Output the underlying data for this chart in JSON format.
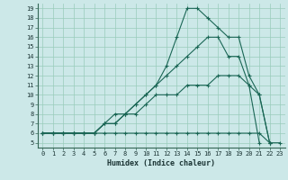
{
  "xlabel": "Humidex (Indice chaleur)",
  "bg_color": "#cce8e8",
  "grid_color": "#99ccbb",
  "line_color": "#1a6655",
  "xlim": [
    0,
    23
  ],
  "ylim": [
    5,
    19
  ],
  "series": [
    {
      "x": [
        0,
        1,
        2,
        3,
        4,
        5,
        6,
        7,
        8,
        9,
        10,
        11,
        12,
        13,
        14,
        15,
        16,
        17,
        18,
        19,
        20,
        21,
        22,
        23
      ],
      "y": [
        6,
        6,
        6,
        6,
        6,
        6,
        6,
        6,
        6,
        6,
        6,
        6,
        6,
        6,
        6,
        6,
        6,
        6,
        6,
        6,
        6,
        6,
        5,
        5
      ]
    },
    {
      "x": [
        0,
        1,
        2,
        3,
        4,
        5,
        6,
        7,
        8,
        9,
        10,
        11,
        12,
        13,
        14,
        15,
        16,
        17,
        18,
        19,
        20,
        21,
        22
      ],
      "y": [
        6,
        6,
        6,
        6,
        6,
        6,
        7,
        7,
        8,
        8,
        9,
        10,
        10,
        10,
        11,
        11,
        11,
        12,
        12,
        12,
        11,
        10,
        5
      ]
    },
    {
      "x": [
        0,
        1,
        2,
        3,
        4,
        5,
        6,
        7,
        8,
        9,
        10,
        11,
        12,
        13,
        14,
        15,
        16,
        17,
        18,
        19,
        20,
        21
      ],
      "y": [
        6,
        6,
        6,
        6,
        6,
        6,
        7,
        8,
        8,
        9,
        10,
        11,
        12,
        13,
        14,
        15,
        16,
        16,
        14,
        14,
        11,
        5
      ]
    },
    {
      "x": [
        0,
        1,
        2,
        3,
        4,
        5,
        6,
        7,
        8,
        9,
        10,
        11,
        12,
        13,
        14,
        15,
        16,
        17,
        18,
        19,
        20,
        21,
        22
      ],
      "y": [
        6,
        6,
        6,
        6,
        6,
        6,
        7,
        7,
        8,
        9,
        10,
        11,
        13,
        16,
        19,
        19,
        18,
        17,
        16,
        16,
        12,
        10,
        5
      ]
    }
  ]
}
